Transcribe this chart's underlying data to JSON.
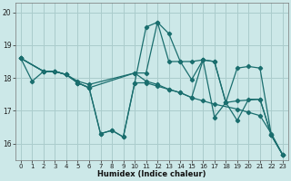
{
  "xlabel": "Humidex (Indice chaleur)",
  "background_color": "#cce8e8",
  "grid_color": "#aacccc",
  "line_color": "#1a6e6e",
  "xlim": [
    -0.5,
    23.5
  ],
  "ylim": [
    15.5,
    20.3
  ],
  "yticks": [
    16,
    17,
    18,
    19,
    20
  ],
  "xticks": [
    0,
    1,
    2,
    3,
    4,
    5,
    6,
    7,
    8,
    9,
    10,
    11,
    12,
    13,
    14,
    15,
    16,
    17,
    18,
    19,
    20,
    21,
    22,
    23
  ],
  "lines": [
    {
      "x": [
        0,
        1,
        2,
        3,
        4,
        5,
        6,
        7,
        8,
        9,
        10,
        11,
        12,
        13,
        14,
        15,
        16,
        17,
        18,
        19,
        20,
        21,
        22,
        23
      ],
      "y": [
        18.6,
        17.9,
        18.2,
        18.2,
        18.1,
        17.85,
        17.7,
        16.3,
        16.4,
        16.2,
        17.85,
        19.55,
        19.7,
        19.35,
        18.5,
        17.95,
        18.55,
        18.5,
        17.25,
        16.7,
        17.35,
        17.35,
        16.25,
        15.65
      ]
    },
    {
      "x": [
        0,
        2,
        3,
        4,
        5,
        6,
        10,
        11,
        12,
        13,
        14,
        15,
        16,
        17,
        19,
        20,
        21,
        22,
        23
      ],
      "y": [
        18.6,
        18.2,
        18.2,
        18.1,
        17.9,
        17.8,
        18.15,
        17.9,
        17.8,
        17.65,
        17.55,
        17.4,
        17.3,
        17.2,
        17.05,
        16.95,
        16.85,
        16.3,
        15.65
      ]
    },
    {
      "x": [
        0,
        2,
        3,
        4,
        5,
        6,
        10,
        11,
        12,
        13,
        14,
        15,
        16,
        17,
        18,
        19,
        20,
        21,
        22,
        23
      ],
      "y": [
        18.6,
        18.2,
        18.2,
        18.1,
        17.85,
        17.7,
        18.15,
        18.15,
        19.7,
        18.5,
        18.5,
        18.5,
        18.55,
        18.5,
        17.25,
        18.3,
        18.35,
        18.3,
        16.25,
        15.65
      ]
    },
    {
      "x": [
        0,
        2,
        3,
        4,
        5,
        6,
        7,
        8,
        9,
        10,
        11,
        12,
        13,
        14,
        15,
        16,
        17,
        18,
        19,
        21,
        22,
        23
      ],
      "y": [
        18.6,
        18.2,
        18.2,
        18.1,
        17.85,
        17.7,
        16.3,
        16.4,
        16.2,
        17.85,
        17.85,
        17.75,
        17.65,
        17.55,
        17.4,
        18.55,
        16.8,
        17.25,
        17.3,
        17.35,
        16.25,
        15.65
      ]
    }
  ]
}
